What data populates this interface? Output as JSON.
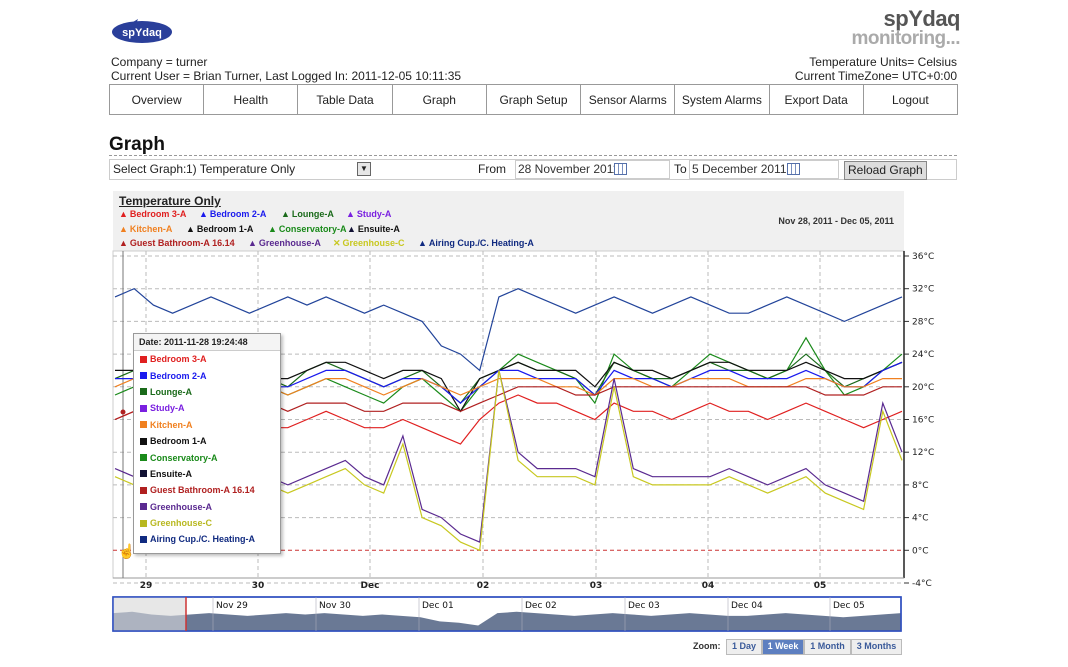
{
  "brand": {
    "logo_text": "spYdaq",
    "title": "spYdaq",
    "subtitle": "monitoring..."
  },
  "header": {
    "company": "Company = turner",
    "current_user": "Current User = Brian Turner, Last Logged In: 2011-12-05 10:11:35",
    "temp_units": "Temperature Units= Celsius",
    "timezone": "Current TimeZone= UTC+0:00"
  },
  "nav": [
    "Overview",
    "Health",
    "Table Data",
    "Graph",
    "Graph Setup",
    "Sensor Alarms",
    "System Alarms",
    "Export Data",
    "Logout"
  ],
  "page_title": "Graph",
  "controls": {
    "select_label": "Select Graph:",
    "select_value": "1) Temperature Only",
    "from_label": "From",
    "from_value": "28 November 2011",
    "to_label": "To",
    "to_value": "5 December 2011",
    "reload": "Reload Graph"
  },
  "chart_data": {
    "type": "line",
    "title": "Temperature Only",
    "date_range": "Nov 28, 2011 - Dec 05, 2011",
    "y_ticks": [
      "36°C",
      "32°C",
      "28°C",
      "24°C",
      "20°C",
      "16°C",
      "12°C",
      "8°C",
      "4°C",
      "0°C",
      "-4°C"
    ],
    "ylim": [
      -4,
      36
    ],
    "x_ticks": [
      "29",
      "30",
      "Dec",
      "02",
      "03",
      "04",
      "05"
    ],
    "legend": [
      {
        "name": "Bedroom 3-A",
        "color": "#e02020"
      },
      {
        "name": "Bedroom 2-A",
        "color": "#1a1aee"
      },
      {
        "name": "Lounge-A",
        "color": "#1a6a1a"
      },
      {
        "name": "Study-A",
        "color": "#7a20e0"
      },
      {
        "name": "Kitchen-A",
        "color": "#f08020"
      },
      {
        "name": "Bedroom 1-A",
        "color": "#111111"
      },
      {
        "name": "Conservatory-A",
        "color": "#1a8a1a"
      },
      {
        "name": "Ensuite-A",
        "color": "#111133"
      },
      {
        "name": "Guest Bathroom-A 16.14",
        "color": "#b02020"
      },
      {
        "name": "Greenhouse-A",
        "color": "#5a2a90"
      },
      {
        "name": "Greenhouse-C",
        "color": "#c8c820"
      },
      {
        "name": "Airing Cup./C. Heating-A",
        "color": "#102a80"
      }
    ],
    "series": [
      {
        "name": "Airing Cup./C. Heating-A",
        "color": "#22449a",
        "values": [
          31,
          32,
          30,
          29,
          30,
          31,
          30,
          29,
          30,
          31,
          30,
          31,
          30,
          29,
          30,
          29,
          28,
          25,
          24,
          22,
          31,
          32,
          31,
          30,
          29,
          30,
          31,
          30,
          29,
          30,
          31,
          30,
          29,
          29,
          30,
          31,
          30,
          29,
          28,
          29,
          30,
          31
        ]
      },
      {
        "name": "Conservatory-A",
        "color": "#1a8a1a",
        "values": [
          19,
          20,
          19,
          18,
          20,
          21,
          22,
          21,
          20,
          19,
          20,
          21,
          20,
          19,
          18,
          20,
          21,
          19,
          17,
          20,
          22,
          24,
          23,
          22,
          21,
          18,
          24,
          22,
          21,
          20,
          22,
          24,
          23,
          22,
          21,
          22,
          26,
          22,
          19,
          20,
          22,
          24
        ]
      },
      {
        "name": "Lounge-A",
        "color": "#1a6a1a",
        "values": [
          21,
          22,
          21,
          20,
          21,
          22,
          23,
          22,
          21,
          20,
          22,
          23,
          22,
          21,
          20,
          21,
          22,
          20,
          18,
          21,
          22,
          23,
          22,
          22,
          21,
          19,
          23,
          22,
          21,
          21,
          22,
          23,
          22,
          22,
          21,
          22,
          24,
          22,
          20,
          21,
          22,
          23
        ]
      },
      {
        "name": "Bedroom 1-A",
        "color": "#111111",
        "values": [
          22,
          22,
          21,
          21,
          22,
          23,
          23,
          22,
          21,
          21,
          22,
          23,
          23,
          22,
          21,
          22,
          22,
          21,
          17,
          21,
          22,
          23,
          22,
          22,
          22,
          20,
          23,
          22,
          22,
          21,
          22,
          23,
          23,
          22,
          22,
          22,
          23,
          22,
          21,
          21,
          22,
          23
        ]
      },
      {
        "name": "Bedroom 2-A",
        "color": "#1a1aee",
        "values": [
          21,
          21,
          20,
          20,
          21,
          22,
          22,
          21,
          20,
          20,
          21,
          22,
          22,
          21,
          20,
          21,
          21,
          20,
          18,
          20,
          22,
          22,
          21,
          21,
          21,
          19,
          22,
          21,
          21,
          20,
          21,
          22,
          22,
          21,
          21,
          21,
          22,
          21,
          20,
          20,
          22,
          23
        ]
      },
      {
        "name": "Kitchen-A",
        "color": "#f08020",
        "values": [
          20,
          21,
          20,
          19,
          20,
          21,
          21,
          20,
          20,
          19,
          20,
          21,
          21,
          20,
          19,
          20,
          21,
          20,
          19,
          20,
          21,
          21,
          21,
          20,
          20,
          19,
          21,
          21,
          20,
          20,
          21,
          21,
          21,
          20,
          20,
          20,
          21,
          21,
          20,
          20,
          21,
          21
        ]
      },
      {
        "name": "Bedroom 3-A",
        "color": "#e02020",
        "values": [
          16,
          17,
          16,
          15,
          16,
          17,
          17,
          16,
          15,
          15,
          16,
          17,
          16,
          15,
          15,
          16,
          15,
          14,
          13,
          16,
          18,
          19,
          18,
          18,
          17,
          16,
          18,
          17,
          17,
          16,
          17,
          18,
          17,
          17,
          16,
          17,
          18,
          17,
          16,
          15,
          16,
          17
        ]
      },
      {
        "name": "Guest Bathroom-A",
        "color": "#b02020",
        "values": [
          16,
          17,
          17,
          17,
          18,
          18,
          18,
          18,
          18,
          17,
          18,
          18,
          18,
          17,
          17,
          18,
          18,
          18,
          17,
          18,
          19,
          20,
          20,
          20,
          19,
          19,
          20,
          20,
          20,
          20,
          20,
          20,
          20,
          20,
          20,
          20,
          20,
          19,
          19,
          19,
          20,
          20
        ]
      },
      {
        "name": "Greenhouse-A",
        "color": "#5a2a90",
        "values": [
          10,
          9,
          8,
          9,
          10,
          12,
          21,
          10,
          9,
          8,
          9,
          10,
          11,
          9,
          8,
          14,
          5,
          4,
          2,
          1,
          22,
          12,
          10,
          10,
          10,
          9,
          21,
          10,
          9,
          9,
          9,
          9,
          10,
          9,
          8,
          9,
          10,
          8,
          7,
          6,
          18,
          12
        ]
      },
      {
        "name": "Greenhouse-C",
        "color": "#c8c820",
        "values": [
          9,
          8,
          7,
          8,
          9,
          11,
          23,
          9,
          8,
          7,
          8,
          9,
          10,
          8,
          7,
          13,
          4,
          3,
          1,
          0,
          22,
          11,
          9,
          9,
          9,
          8,
          20,
          9,
          8,
          8,
          8,
          8,
          9,
          8,
          7,
          8,
          9,
          7,
          6,
          5,
          17,
          11
        ]
      }
    ]
  },
  "tooltip": {
    "date": "Date: 2011-11-28 19:24:48",
    "items": [
      {
        "name": "Bedroom 3-A",
        "color": "#e02020"
      },
      {
        "name": "Bedroom 2-A",
        "color": "#1a1aee"
      },
      {
        "name": "Lounge-A",
        "color": "#1a6a1a"
      },
      {
        "name": "Study-A",
        "color": "#7a20e0"
      },
      {
        "name": "Kitchen-A",
        "color": "#f08020"
      },
      {
        "name": "Bedroom 1-A",
        "color": "#111111"
      },
      {
        "name": "Conservatory-A",
        "color": "#1a8a1a"
      },
      {
        "name": "Ensuite-A",
        "color": "#111133"
      },
      {
        "name": "Guest Bathroom-A 16.14",
        "color": "#b02020"
      },
      {
        "name": "Greenhouse-A",
        "color": "#5a2a90"
      },
      {
        "name": "Greenhouse-C",
        "color": "#b8b820"
      },
      {
        "name": "Airing Cup./C. Heating-A",
        "color": "#102a80"
      }
    ]
  },
  "navigator": {
    "labels": [
      "Nov 29",
      "Nov 30",
      "Dec 01",
      "Dec 02",
      "Dec 03",
      "Dec 04",
      "Dec 05"
    ],
    "zoom_label": "Zoom:",
    "zoom_buttons": [
      "1 Day",
      "1 Week",
      "1 Month",
      "3 Months"
    ],
    "active_zoom": "1 Week"
  },
  "icons": {
    "dropdown": "dropdown-arrow-icon",
    "calendar": "calendar-icon",
    "cursor": "hand-cursor-icon"
  }
}
